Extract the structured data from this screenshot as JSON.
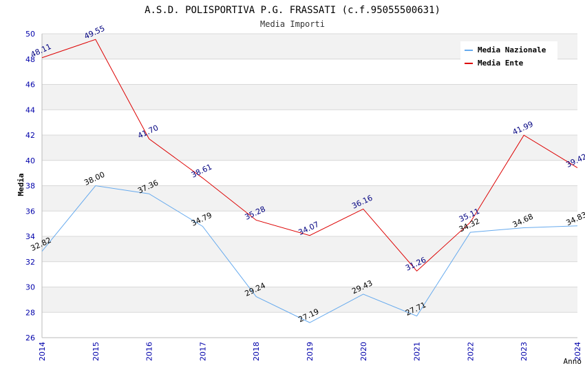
{
  "chart_data": {
    "type": "line",
    "title": "A.S.D. POLISPORTIVA P.G. FRASSATI (c.f.95055500631)",
    "subtitle": "Media Importi",
    "ylabel": "Media",
    "xlabel": "Anno",
    "x": [
      "2014",
      "2015",
      "2016",
      "2017",
      "2018",
      "2019",
      "2020",
      "2021",
      "2022",
      "2023",
      "2024"
    ],
    "ylim": [
      26,
      50
    ],
    "yticks": [
      "26",
      "28",
      "30",
      "32",
      "34",
      "36",
      "38",
      "40",
      "42",
      "44",
      "46",
      "48",
      "50"
    ],
    "grid": true,
    "legend_position": "top-right",
    "series": [
      {
        "name": "Media Nazionale",
        "color": "#66aaee",
        "label_color": "#000000",
        "values": [
          32.82,
          38.0,
          37.36,
          34.79,
          29.24,
          27.19,
          29.43,
          27.71,
          34.32,
          34.68,
          34.83
        ],
        "labels": [
          "32.82",
          "38.00",
          "37.36",
          "34.79",
          "29.24",
          "27.19",
          "29.43",
          "27.71",
          "34.32",
          "34.68",
          "34.83"
        ]
      },
      {
        "name": "Media Ente",
        "color": "#dd0000",
        "label_color": "#000080",
        "values": [
          48.11,
          49.55,
          41.7,
          38.61,
          35.28,
          34.07,
          36.16,
          31.26,
          35.11,
          41.99,
          39.42
        ],
        "labels": [
          "48.11",
          "49.55",
          "41.70",
          "38.61",
          "35.28",
          "34.07",
          "36.16",
          "31.26",
          "35.11",
          "41.99",
          "39.42"
        ]
      }
    ],
    "colors": {
      "band": "#f2f2f2",
      "gridline": "#d8d8d8",
      "x_tick_text": "#0000aa",
      "y_tick_text": "#0000aa"
    }
  }
}
